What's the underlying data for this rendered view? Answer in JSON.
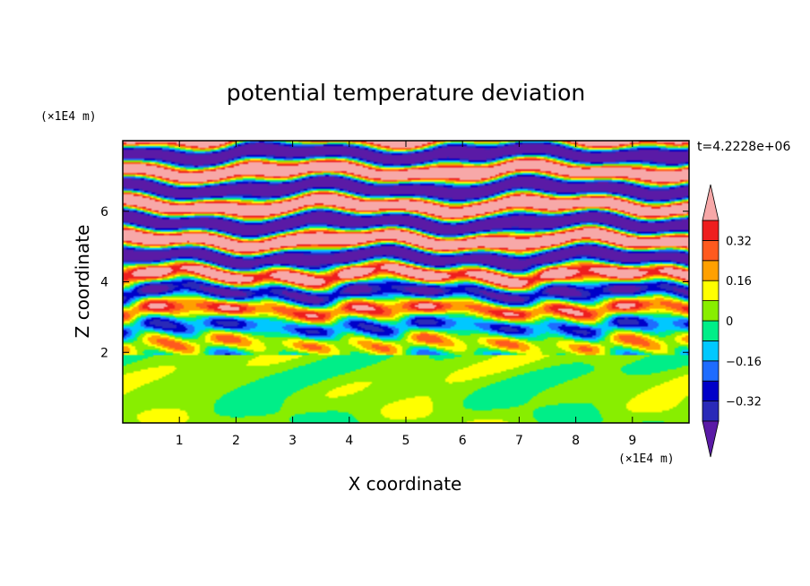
{
  "chart_data": {
    "type": "heatmap",
    "title": "potential temperature deviation",
    "xlabel": "X coordinate",
    "ylabel": "Z coordinate",
    "x_unit": "(×1E4 m)",
    "y_unit": "(×1E4 m)",
    "time_label": "t=4.2228e+06",
    "xlim": [
      0,
      10
    ],
    "ylim": [
      0,
      8
    ],
    "x_ticks": [
      1,
      2,
      3,
      4,
      5,
      6,
      7,
      8,
      9
    ],
    "y_ticks": [
      2,
      4,
      6
    ],
    "colorbar": {
      "levels": [
        -0.4,
        -0.32,
        -0.24,
        -0.16,
        -0.08,
        0,
        0.08,
        0.16,
        0.24,
        0.32,
        0.4
      ],
      "colors": [
        "#5a1aa6",
        "#2a2ab8",
        "#0000c8",
        "#1e6cff",
        "#00c8ff",
        "#00ee88",
        "#88ee00",
        "#ffff00",
        "#ffa000",
        "#ff5a1e",
        "#ee1e1e",
        "#f7a8a8"
      ],
      "labels": [
        "0.32",
        "0.16",
        "0",
        "−0.16",
        "−0.32"
      ],
      "label_values": [
        0.32,
        0.16,
        0,
        -0.16,
        -0.32
      ],
      "extend": "both"
    }
  }
}
